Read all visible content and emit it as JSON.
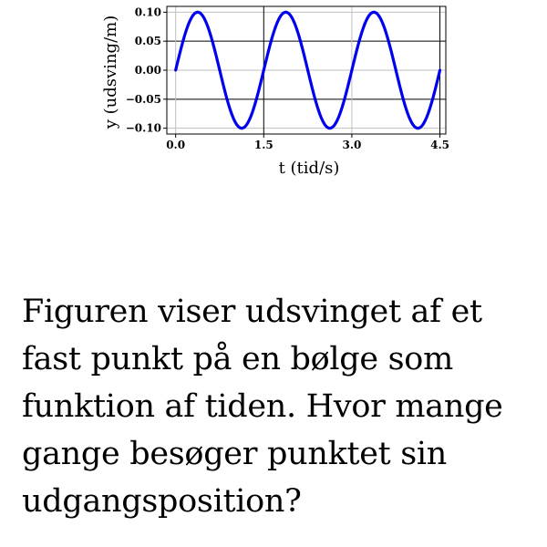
{
  "chart_data": {
    "type": "line",
    "xlabel": "t (tid/s)",
    "ylabel": "y (udsving/m)",
    "xlim": [
      -0.15,
      4.6
    ],
    "ylim": [
      -0.11,
      0.11
    ],
    "x_ticks": [
      0.0,
      1.5,
      3.0,
      4.5
    ],
    "x_tick_labels": [
      "0.0",
      "1.5",
      "3.0",
      "4.5"
    ],
    "y_ticks": [
      -0.1,
      -0.05,
      0.0,
      0.05,
      0.1
    ],
    "y_tick_labels": [
      "−0.10",
      "−0.05",
      "0.00",
      "0.05",
      "0.10"
    ],
    "grid": true,
    "series": [
      {
        "color": "#0000ee",
        "amplitude": 0.1,
        "period": 1.5,
        "x": [
          0.0,
          0.375,
          0.75,
          1.125,
          1.5,
          1.875,
          2.25,
          2.625,
          3.0,
          3.375,
          3.75,
          4.125,
          4.5
        ],
        "values": [
          0.0,
          0.1,
          0.0,
          -0.1,
          0.0,
          0.1,
          0.0,
          -0.1,
          0.0,
          0.1,
          0.0,
          -0.1,
          0.0
        ]
      }
    ]
  },
  "question": {
    "text": "Figuren viser udsvinget af et fast punkt på en bølge som funktion af tiden. Hvor mange gange besøger punktet sin udgangsposition?"
  }
}
